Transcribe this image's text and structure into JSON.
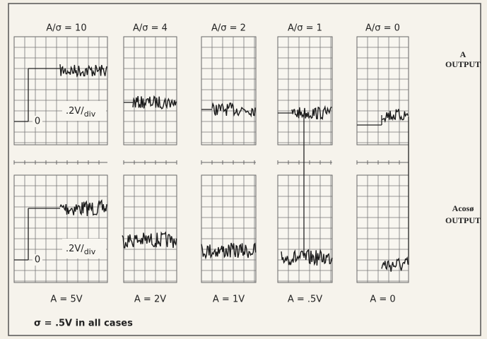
{
  "columns": [
    {
      "header": "A/σ = 10",
      "footer": "A = 5V"
    },
    {
      "header": "A/σ = 4",
      "footer": "A = 2V"
    },
    {
      "header": "A/σ = 2",
      "footer": "A = 1V"
    },
    {
      "header": "A/σ = 1",
      "footer": "A = .5V"
    },
    {
      "header": "A/σ = 0",
      "footer": "A = 0"
    }
  ],
  "row_labels": [
    [
      "A",
      "OUTPUT"
    ],
    [
      "Acosø",
      "OUTPUT"
    ]
  ],
  "zero_label": "0",
  "scale": {
    "main": ".2V/",
    "sub": "div"
  },
  "note": "σ = .5V in all cases"
}
